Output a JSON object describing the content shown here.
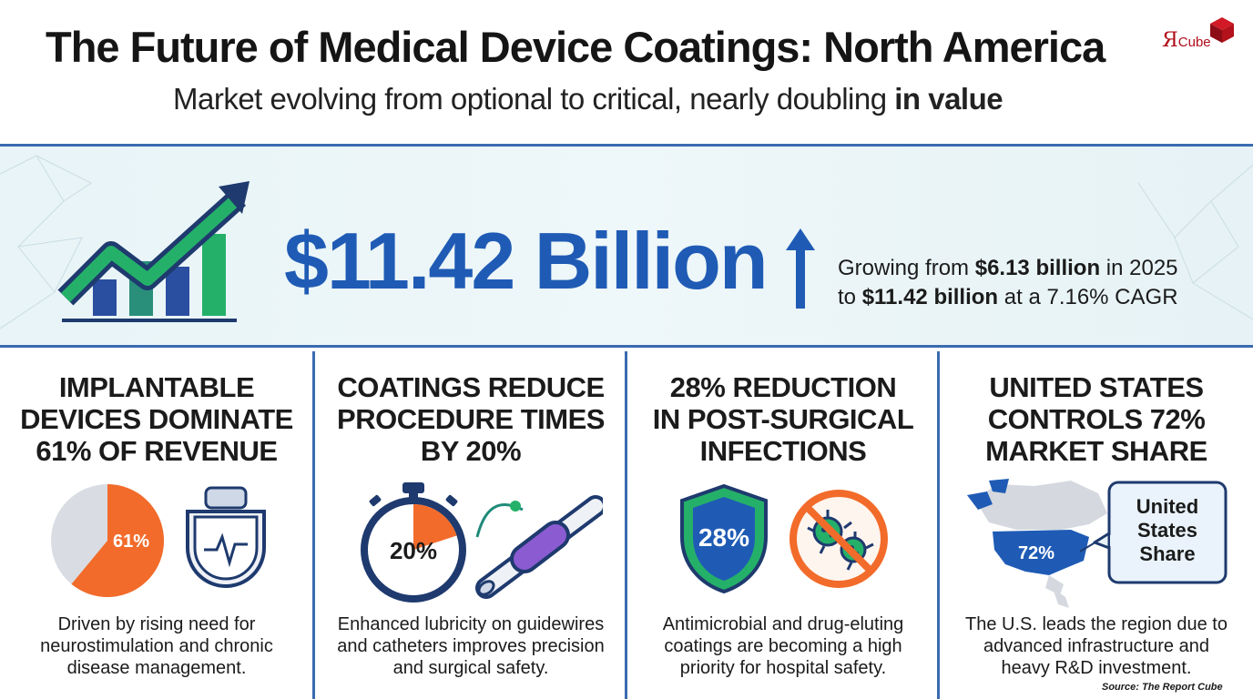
{
  "header": {
    "title": "The Future of Medical Device Coatings: North America",
    "subtitle_main": "Market evolving from optional to critical, nearly doubling",
    "subtitle_bold": "in value"
  },
  "logo": {
    "text_r": "Я",
    "text_cube": "Cube"
  },
  "hero": {
    "value": "$11.42 Billion",
    "growth_line1_pre": "Growing from",
    "growth_line1_bold": "$6.13 billion",
    "growth_line1_post": "in 2025",
    "growth_line2_pre": "to",
    "growth_line2_bold": "$11.42 billion",
    "growth_line2_post": "at a 7.16% CAGR",
    "icons": [
      "growth-chart-icon",
      "up-arrow-icon"
    ]
  },
  "panels": [
    {
      "title_lines": [
        "IMPLANTABLE",
        "DEVICES DOMINATE",
        "61% OF REVENUE"
      ],
      "badge": "61%",
      "share": 0.61,
      "icons": [
        "pie-chart-icon",
        "pacemaker-icon"
      ],
      "desc_lines": [
        "Driven by rising need for",
        "neurostimulation and chronic",
        "disease management."
      ]
    },
    {
      "title_lines": [
        "COATINGS REDUCE",
        "PROCEDURE TIMES",
        "BY 20%"
      ],
      "badge": "20%",
      "share": 0.2,
      "icons": [
        "stopwatch-icon",
        "catheter-icon"
      ],
      "desc_lines": [
        "Enhanced lubricity on guidewires",
        "and catheters improves precision",
        "and surgical safety."
      ]
    },
    {
      "title_lines": [
        "28% REDUCTION",
        "IN POST-SURGICAL",
        "INFECTIONS"
      ],
      "badge": "28%",
      "icons": [
        "shield-icon",
        "no-germs-icon"
      ],
      "desc_lines": [
        "Antimicrobial and drug-eluting",
        "coatings are becoming a high",
        "priority for hospital safety."
      ]
    },
    {
      "title_lines": [
        "UNITED STATES",
        "CONTROLS 72%",
        "MARKET SHARE"
      ],
      "badge": "72%",
      "callout_lines": [
        "United",
        "States",
        "Share"
      ],
      "icons": [
        "north-america-map-icon"
      ],
      "desc_lines": [
        "The U.S. leads the region due to",
        "advanced infrastructure and",
        "heavy R&D investment."
      ]
    }
  ],
  "footer": {
    "source": "Source: The Report Cube"
  },
  "colors": {
    "blue": "#1f5bb5",
    "navy": "#1e3a6e",
    "green": "#25b06a",
    "orange": "#f26b2a",
    "purple": "#8a5bd1",
    "logo_red": "#b00d1a"
  }
}
